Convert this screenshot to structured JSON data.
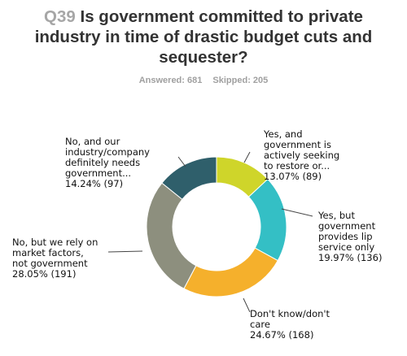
{
  "header": {
    "question_number": "Q39",
    "title_lines": [
      "Is government committed to private",
      "industry in time of drastic budget cuts and",
      "sequester?"
    ]
  },
  "stats": {
    "answered": "Answered: 681",
    "skipped": "Skipped: 205"
  },
  "colors": {
    "yes_restore": "#cfd52a",
    "yes_lip": "#34bfc5",
    "dont_know": "#f5b02c",
    "no_market": "#8d8f7e",
    "no_needs": "#2f5f6b"
  },
  "chart_data": {
    "type": "pie",
    "donut": true,
    "title": "Is government committed to private industry in time of drastic budget cuts and sequester?",
    "slices": [
      {
        "key": "yes_restore",
        "label_lines": [
          "Yes, and",
          "government is",
          "actively seeking",
          "to restore or...",
          "13.07% (89)"
        ],
        "percent": 13.07,
        "count": 89
      },
      {
        "key": "yes_lip",
        "label_lines": [
          "Yes, but",
          "government",
          "provides lip",
          "service only",
          "19.97% (136)"
        ],
        "percent": 19.97,
        "count": 136
      },
      {
        "key": "dont_know",
        "label_lines": [
          "Don't know/don't",
          "care",
          "24.67% (168)"
        ],
        "percent": 24.67,
        "count": 168
      },
      {
        "key": "no_market",
        "label_lines": [
          "No, but we rely on",
          "market factors,",
          "not government",
          "28.05% (191)"
        ],
        "percent": 28.05,
        "count": 191
      },
      {
        "key": "no_needs",
        "label_lines": [
          "No, and our",
          "industry/company",
          "definitely needs",
          "government...",
          "14.24% (97)"
        ],
        "percent": 14.24,
        "count": 97
      }
    ]
  }
}
